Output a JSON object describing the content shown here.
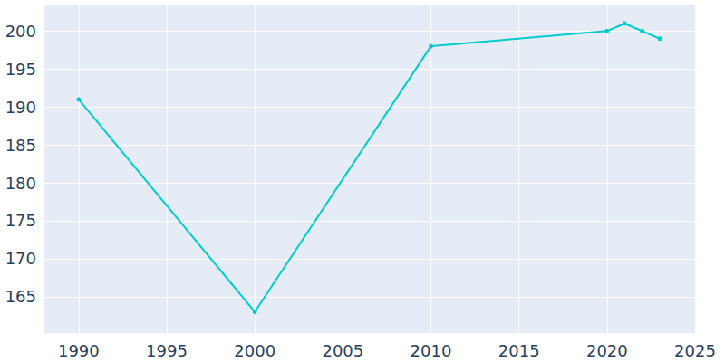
{
  "chart_data": {
    "type": "line",
    "x": [
      1990,
      2000,
      2010,
      2020,
      2021,
      2022,
      2023
    ],
    "values": [
      191,
      163,
      198,
      200,
      201,
      200,
      199
    ],
    "color": "#00cccc",
    "marker": "circle",
    "xlim": [
      1988,
      2025
    ],
    "xticks": [
      1990,
      1995,
      2000,
      2005,
      2010,
      2015,
      2020,
      2025
    ],
    "ylim": [
      160.2,
      203.5
    ],
    "yticks": [
      165,
      170,
      175,
      180,
      185,
      190,
      195,
      200
    ],
    "grid": true
  }
}
